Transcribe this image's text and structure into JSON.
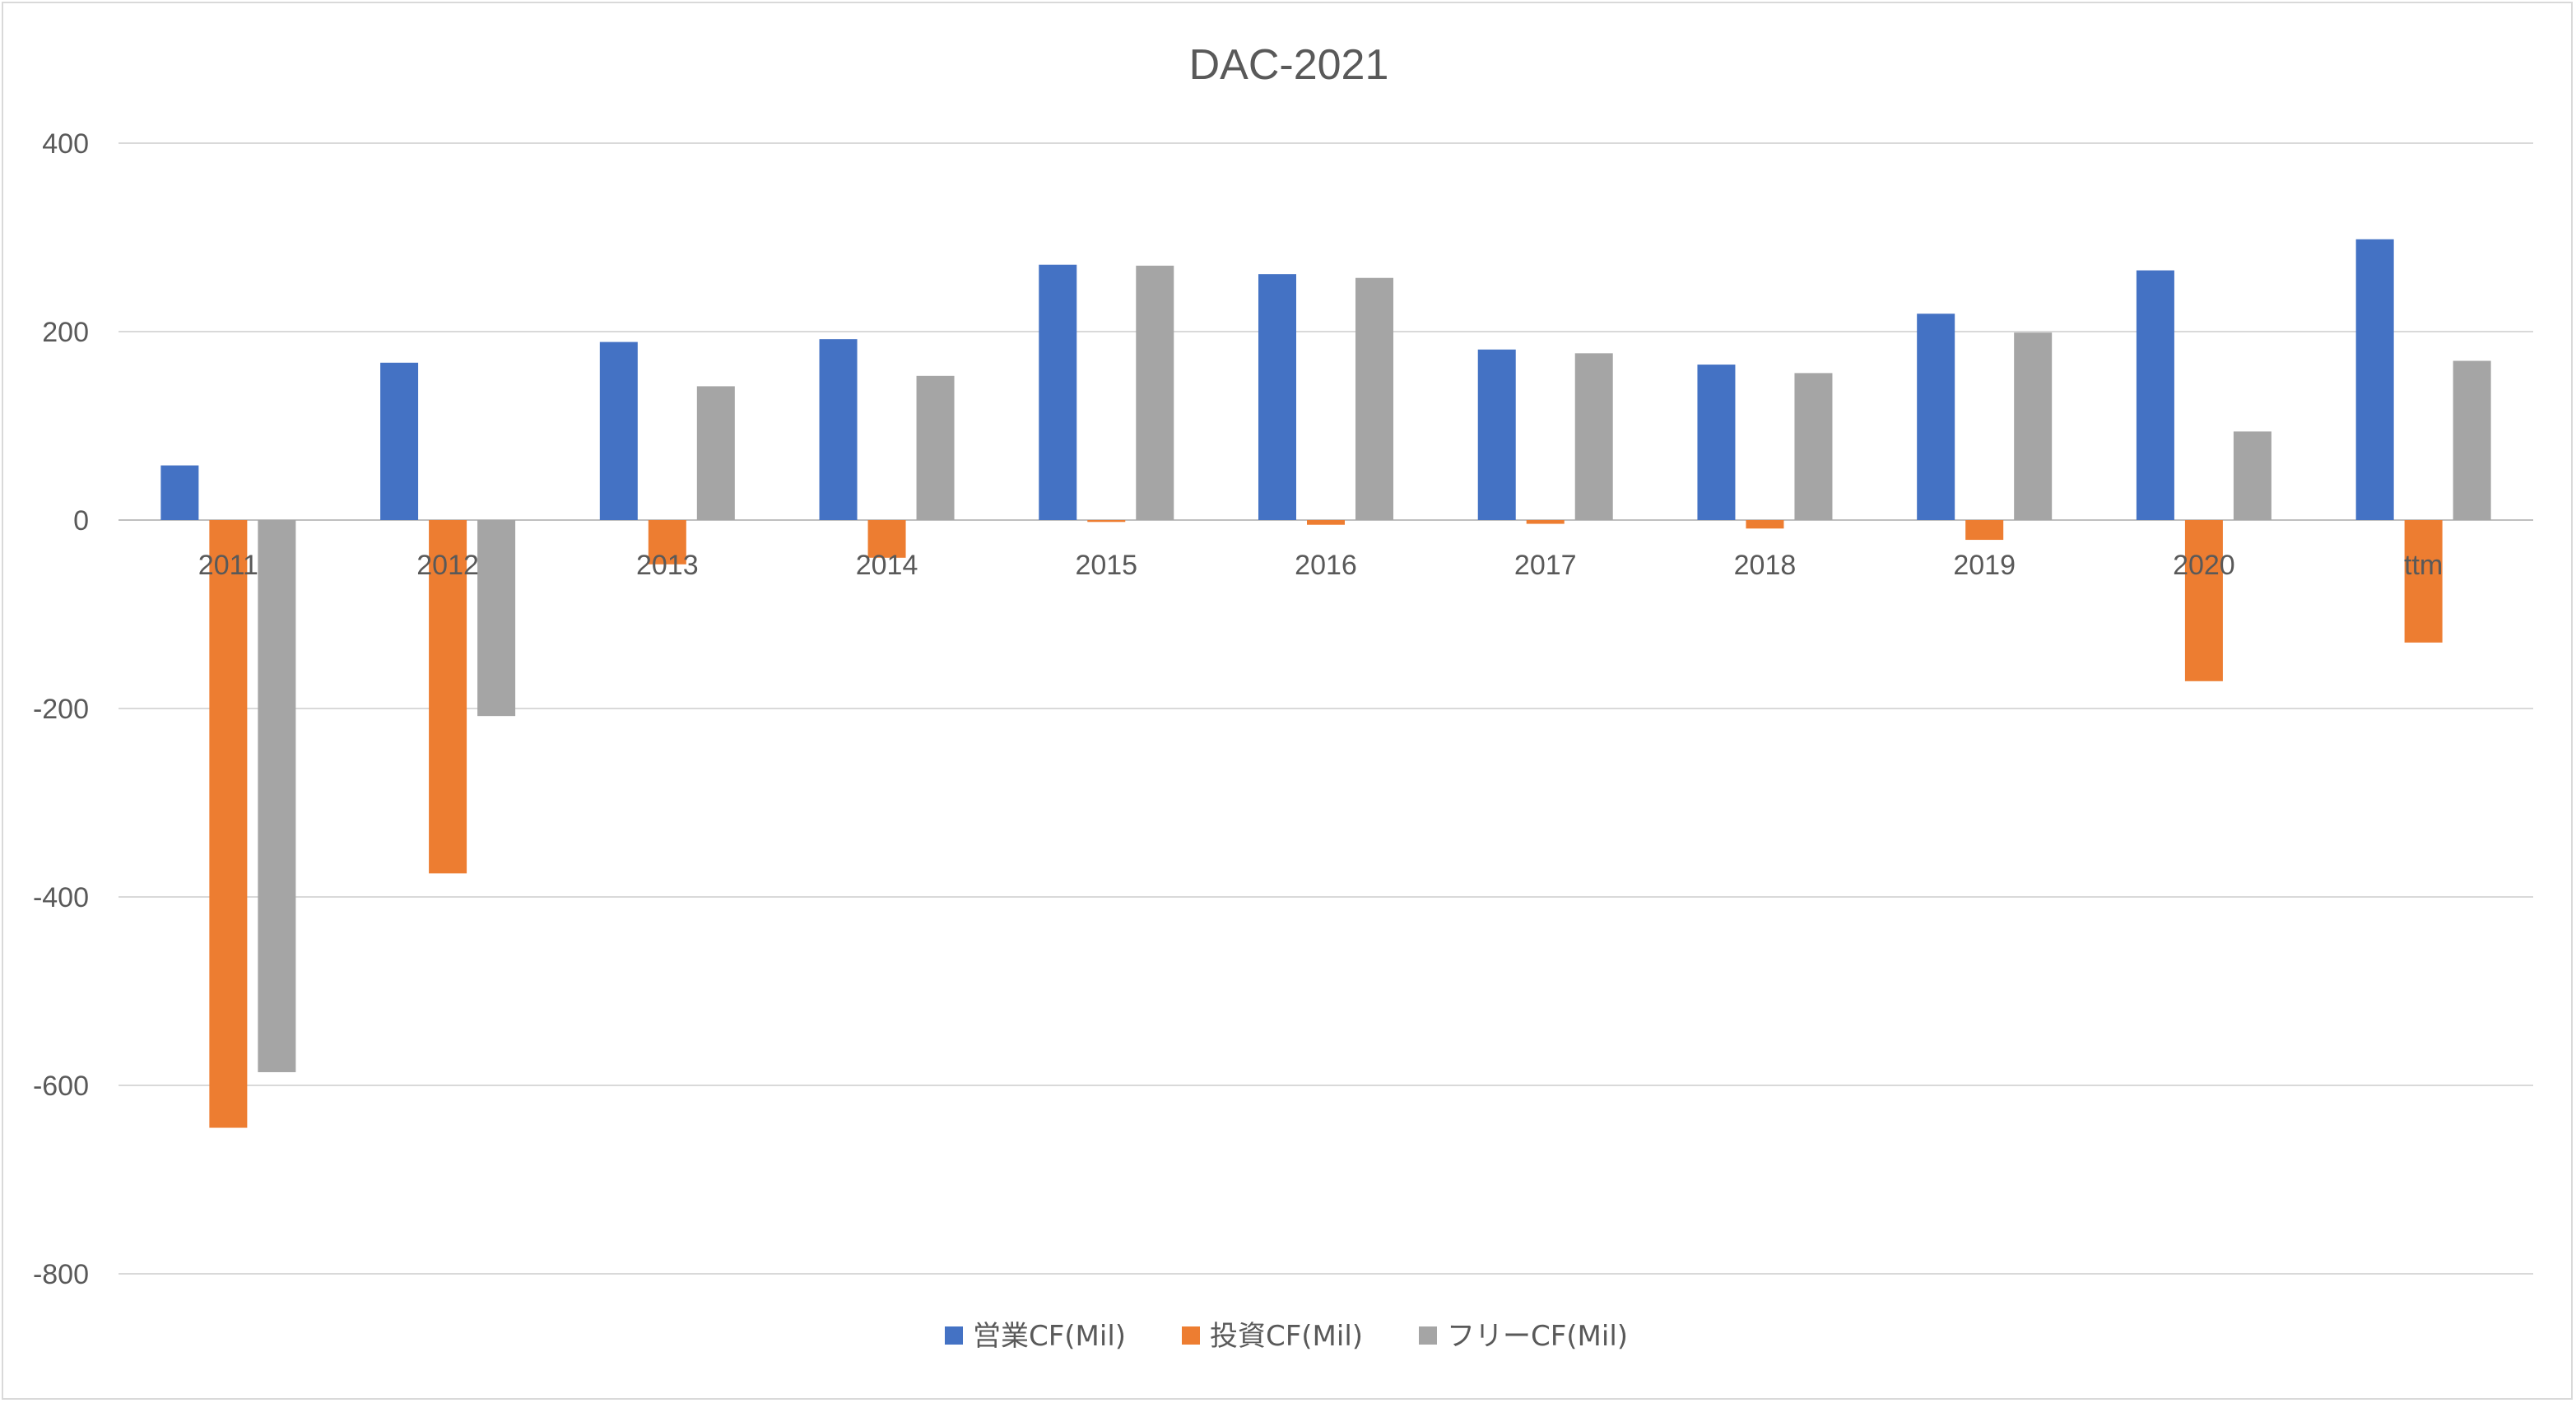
{
  "chart_data": {
    "type": "bar",
    "title": "DAC-2021",
    "xlabel": "",
    "ylabel": "",
    "ylim": [
      -800,
      400
    ],
    "yticks": [
      400,
      200,
      0,
      -200,
      -400,
      -600,
      -800
    ],
    "grid": true,
    "legend_position": "bottom",
    "categories": [
      "2011",
      "2012",
      "2013",
      "2014",
      "2015",
      "2016",
      "2017",
      "2018",
      "2019",
      "2020",
      "ttm"
    ],
    "series": [
      {
        "name": "営業CF(Mil)",
        "color": "#4472C4",
        "values": [
          58,
          167,
          189,
          192,
          271,
          261,
          181,
          165,
          219,
          265,
          298
        ]
      },
      {
        "name": "投資CF(Mil)",
        "color": "#ED7D31",
        "values": [
          -645,
          -375,
          -47,
          -40,
          -2,
          -5,
          -4,
          -9,
          -21,
          -171,
          -130
        ]
      },
      {
        "name": "フリーCF(Mil)",
        "color": "#A5A5A5",
        "values": [
          -586,
          -208,
          142,
          153,
          270,
          257,
          177,
          156,
          199,
          94,
          169
        ]
      }
    ]
  }
}
